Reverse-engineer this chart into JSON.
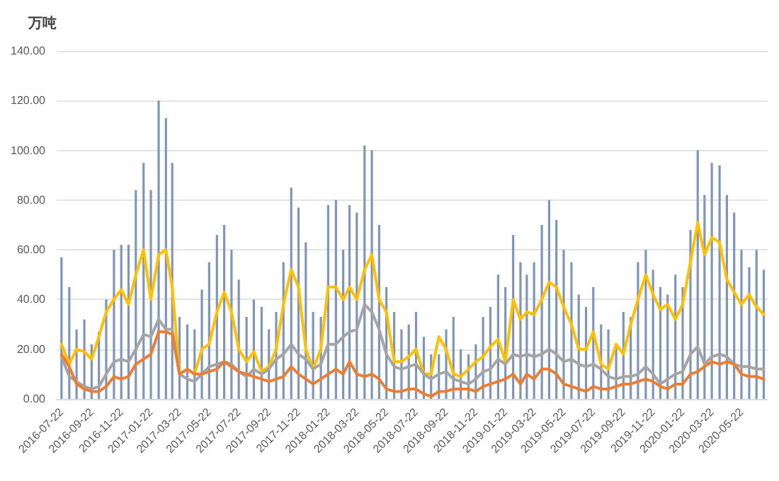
{
  "chart_data": {
    "type": "bar",
    "ylabel": "万吨",
    "grid": "y",
    "marker": "none",
    "line_style": "solid",
    "x": [
      "2016-07-22",
      "2016-08-07",
      "2016-08-22",
      "2016-09-07",
      "2016-09-22",
      "2016-10-07",
      "2016-10-22",
      "2016-11-07",
      "2016-11-22",
      "2016-12-07",
      "2016-12-22",
      "2017-01-07",
      "2017-01-22",
      "2017-02-07",
      "2017-02-22",
      "2017-03-07",
      "2017-03-22",
      "2017-04-07",
      "2017-04-22",
      "2017-05-07",
      "2017-05-22",
      "2017-06-07",
      "2017-06-22",
      "2017-07-07",
      "2017-07-22",
      "2017-08-07",
      "2017-08-22",
      "2017-09-07",
      "2017-09-22",
      "2017-10-07",
      "2017-10-22",
      "2017-11-07",
      "2017-11-22",
      "2017-12-07",
      "2017-12-22",
      "2018-01-07",
      "2018-01-22",
      "2018-02-07",
      "2018-02-22",
      "2018-03-07",
      "2018-03-22",
      "2018-04-07",
      "2018-04-22",
      "2018-05-07",
      "2018-05-22",
      "2018-06-07",
      "2018-06-22",
      "2018-07-07",
      "2018-07-22",
      "2018-08-07",
      "2018-08-22",
      "2018-09-07",
      "2018-09-22",
      "2018-10-07",
      "2018-10-22",
      "2018-11-07",
      "2018-11-22",
      "2018-12-07",
      "2018-12-22",
      "2019-01-07",
      "2019-01-22",
      "2019-02-07",
      "2019-02-22",
      "2019-03-07",
      "2019-03-22",
      "2019-04-07",
      "2019-04-22",
      "2019-05-07",
      "2019-05-22",
      "2019-06-07",
      "2019-06-22",
      "2019-07-07",
      "2019-07-22",
      "2019-08-07",
      "2019-08-22",
      "2019-09-07",
      "2019-09-22",
      "2019-10-07",
      "2019-10-22",
      "2019-11-07",
      "2019-11-22",
      "2019-12-07",
      "2019-12-22",
      "2020-01-07",
      "2020-01-22",
      "2020-02-07",
      "2020-02-22",
      "2020-03-07",
      "2020-03-22",
      "2020-04-07",
      "2020-04-22",
      "2020-05-07",
      "2020-05-22",
      "2020-06-07",
      "2020-06-22",
      "2020-07-07"
    ],
    "xlim": [
      "2016-07-12",
      "2020-07-15"
    ],
    "xticks": [
      "2016-07-22",
      "2016-09-22",
      "2016-11-22",
      "2017-01-22",
      "2017-03-22",
      "2017-05-22",
      "2017-07-22",
      "2017-09-22",
      "2017-11-22",
      "2018-01-22",
      "2018-03-22",
      "2018-05-22",
      "2018-07-22",
      "2018-09-22",
      "2018-11-22",
      "2019-01-22",
      "2019-03-22",
      "2019-05-22",
      "2019-07-22",
      "2019-09-22",
      "2019-11-22",
      "2020-01-22",
      "2020-03-22",
      "2020-05-22"
    ],
    "ylim": [
      0,
      140
    ],
    "yticks": [
      {
        "value": 0,
        "label": "0.00"
      },
      {
        "value": 20,
        "label": "20.00"
      },
      {
        "value": 40,
        "label": "40.00"
      },
      {
        "value": 60,
        "label": "60.00"
      },
      {
        "value": 80,
        "label": "80.00"
      },
      {
        "value": 100,
        "label": "100.00"
      },
      {
        "value": 120,
        "label": "120.00"
      },
      {
        "value": 140,
        "label": "140.00"
      }
    ],
    "series": [
      {
        "color": "#7f96b8",
        "values": [
          57,
          45,
          28,
          32,
          22,
          27,
          40,
          60,
          62,
          62,
          84,
          95,
          84,
          120,
          113,
          95,
          33,
          30,
          28,
          44,
          55,
          66,
          70,
          60,
          48,
          33,
          40,
          37,
          28,
          35,
          55,
          85,
          77,
          63,
          35,
          33,
          78,
          80,
          60,
          78,
          75,
          102,
          100,
          70,
          45,
          35,
          28,
          30,
          35,
          25,
          18,
          18,
          28,
          33,
          20,
          18,
          22,
          33,
          37,
          50,
          45,
          66,
          55,
          50,
          55,
          70,
          80,
          72,
          60,
          55,
          42,
          37,
          45,
          30,
          28,
          22,
          35,
          33,
          55,
          60,
          52,
          45,
          42,
          50,
          45,
          68,
          100,
          82,
          95,
          94,
          82,
          75,
          60,
          53,
          60,
          52
        ]
      },
      {
        "type": "line",
        "color": "#ffc000",
        "values": [
          22,
          14,
          20,
          19,
          16,
          25,
          35,
          40,
          44,
          38,
          50,
          60,
          40,
          58,
          60,
          45,
          10,
          12,
          10,
          20,
          22,
          35,
          43,
          35,
          20,
          15,
          19,
          11,
          13,
          20,
          38,
          52,
          45,
          20,
          12,
          20,
          45,
          45,
          40,
          45,
          40,
          52,
          58,
          40,
          35,
          15,
          15,
          17,
          20,
          10,
          10,
          25,
          20,
          10,
          9,
          12,
          15,
          17,
          21,
          24,
          15,
          40,
          32,
          35,
          34,
          40,
          47,
          45,
          37,
          30,
          20,
          20,
          27,
          14,
          12,
          22,
          18,
          30,
          40,
          50,
          42,
          36,
          38,
          32,
          38,
          55,
          71,
          58,
          65,
          63,
          48,
          43,
          38,
          42,
          37,
          34
        ]
      },
      {
        "type": "line",
        "color": "#a5a5a5",
        "values": [
          17,
          9,
          7,
          5,
          4,
          5,
          10,
          15,
          16,
          15,
          20,
          26,
          25,
          32,
          28,
          28,
          10,
          8,
          7,
          10,
          13,
          14,
          15,
          14,
          11,
          9,
          12,
          10,
          12,
          16,
          18,
          22,
          18,
          16,
          12,
          14,
          22,
          22,
          25,
          27,
          28,
          38,
          35,
          28,
          18,
          13,
          12,
          13,
          14,
          10,
          8,
          10,
          11,
          8,
          7,
          6,
          8,
          11,
          12,
          16,
          14,
          18,
          17,
          18,
          17,
          18,
          20,
          18,
          15,
          16,
          14,
          13,
          14,
          12,
          9,
          8,
          9,
          9,
          10,
          13,
          10,
          6,
          8,
          10,
          11,
          18,
          21,
          14,
          17,
          18,
          17,
          14,
          13,
          13,
          12,
          12
        ]
      },
      {
        "type": "line",
        "color": "#ed7d31",
        "values": [
          18,
          13,
          6,
          4,
          3,
          3,
          5,
          9,
          8,
          9,
          14,
          16,
          18,
          27,
          27,
          26,
          10,
          12,
          10,
          10,
          11,
          12,
          15,
          13,
          11,
          10,
          9,
          8,
          7,
          8,
          9,
          13,
          10,
          8,
          6,
          8,
          10,
          12,
          10,
          15,
          10,
          9,
          10,
          8,
          4,
          3,
          3,
          4,
          4,
          2,
          1,
          3,
          3,
          4,
          4,
          4,
          3,
          5,
          6,
          7,
          8,
          10,
          6,
          10,
          8,
          12,
          12,
          10,
          6,
          5,
          4,
          3,
          5,
          4,
          4,
          5,
          6,
          6,
          7,
          8,
          7,
          5,
          4,
          6,
          6,
          10,
          11,
          13,
          15,
          14,
          15,
          14,
          10,
          9,
          9,
          8
        ]
      }
    ]
  }
}
